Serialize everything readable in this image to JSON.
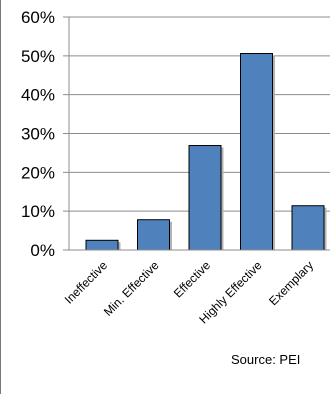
{
  "chart_data": {
    "type": "bar",
    "categories": [
      "Ineffective",
      "Min. Effective",
      "Effective",
      "Highly Effective",
      "Exemplary"
    ],
    "values": [
      2.5,
      7.8,
      26.9,
      50.6,
      11.4
    ],
    "ylim": [
      0,
      60
    ],
    "yticks": [
      0,
      10,
      20,
      30,
      40,
      50,
      60
    ],
    "ytick_labels": [
      "0%",
      "10%",
      "20%",
      "30%",
      "40%",
      "50%",
      "60%"
    ],
    "grid": true,
    "bar_color": "#4f81bd",
    "source": "Source:  PEI"
  }
}
